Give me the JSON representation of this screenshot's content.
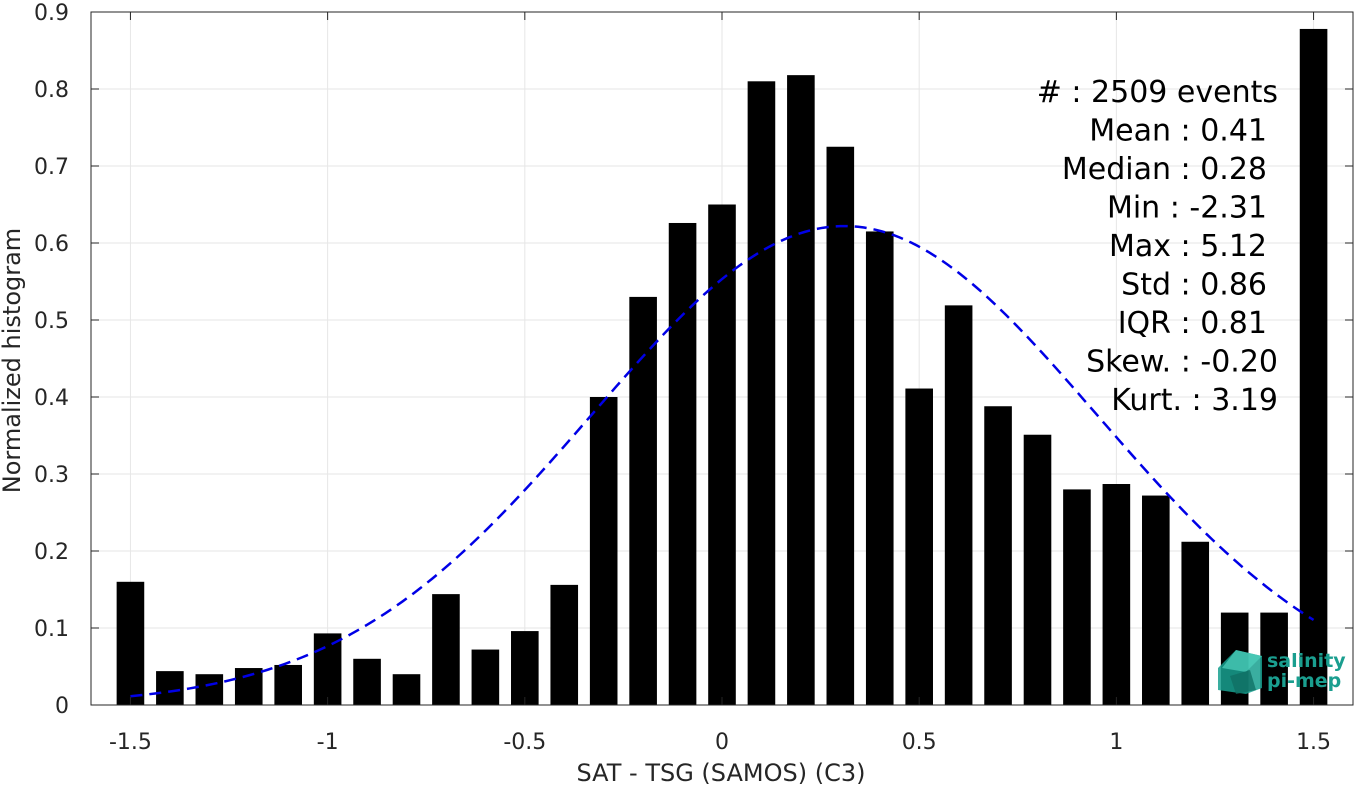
{
  "chart_data": {
    "type": "bar",
    "xlabel": "SAT - TSG (SAMOS) (C3)",
    "ylabel": "Normalized histogram",
    "xlim": [
      -1.6,
      1.6
    ],
    "ylim": [
      0,
      0.9
    ],
    "grid": true,
    "x_ticks": [
      -1.5,
      -1,
      -0.5,
      0,
      0.5,
      1,
      1.5
    ],
    "x_tick_labels": [
      "-1.5",
      "-1",
      "-0.5",
      "0",
      "0.5",
      "1",
      "1.5"
    ],
    "y_ticks": [
      0,
      0.1,
      0.2,
      0.3,
      0.4,
      0.5,
      0.6,
      0.7,
      0.8,
      0.9
    ],
    "y_tick_labels": [
      "0",
      "0.1",
      "0.2",
      "0.3",
      "0.4",
      "0.5",
      "0.6",
      "0.7",
      "0.8",
      "0.9"
    ],
    "bar_width": 0.07,
    "bar_color": "#000000",
    "series": [
      {
        "x": [
          -1.5,
          -1.4,
          -1.3,
          -1.2,
          -1.1,
          -1.0,
          -0.9,
          -0.8,
          -0.7,
          -0.6,
          -0.5,
          -0.4,
          -0.3,
          -0.2,
          -0.1,
          0.0,
          0.1,
          0.2,
          0.3,
          0.4,
          0.5,
          0.6,
          0.7,
          0.8,
          0.9,
          1.0,
          1.1,
          1.2,
          1.3,
          1.4,
          1.5
        ],
        "values": [
          0.16,
          0.044,
          0.04,
          0.048,
          0.052,
          0.093,
          0.06,
          0.04,
          0.144,
          0.072,
          0.096,
          0.156,
          0.4,
          0.53,
          0.626,
          0.65,
          0.81,
          0.818,
          0.725,
          0.615,
          0.411,
          0.519,
          0.388,
          0.351,
          0.28,
          0.287,
          0.272,
          0.212,
          0.12,
          0.12,
          0.878
        ]
      }
    ],
    "fit_curve": {
      "style": "dashed",
      "color": "#0000e6",
      "mean": 0.31,
      "peak": 0.622,
      "sigma": 0.64,
      "x_range": [
        -1.5,
        1.5
      ]
    },
    "stats": [
      {
        "label": "#  : 2509 events"
      },
      {
        "label": "Mean : 0.41"
      },
      {
        "label": "Median : 0.28"
      },
      {
        "label": "Min : -2.31"
      },
      {
        "label": "Max : 5.12"
      },
      {
        "label": "Std : 0.86"
      },
      {
        "label": "IQR : 0.81"
      },
      {
        "label": "Skew. : -0.20"
      },
      {
        "label": "Kurt. : 3.19"
      }
    ]
  },
  "logo": {
    "line1": "salinity",
    "line2": "pi-mep",
    "color": "#1a9e8f"
  }
}
